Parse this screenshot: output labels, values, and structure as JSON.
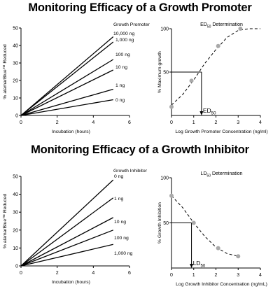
{
  "panels": [
    {
      "heading": "Monitoring Efficacy of a Growth Promoter"
    },
    {
      "heading": "Monitoring Efficacy of a Growth Inhibitor"
    }
  ],
  "chart_data": [
    {
      "type": "line",
      "title": "",
      "xlabel": "Incubation (hours)",
      "ylabel": "% alamarBlue™ Reduced",
      "legend_title": "Growth Promoter",
      "xlim": [
        0,
        6
      ],
      "ylim": [
        0,
        50
      ],
      "xticks": [
        0,
        2,
        4,
        6
      ],
      "yticks": [
        0,
        10,
        20,
        30,
        40,
        50
      ],
      "grid": false,
      "series": [
        {
          "name": "10,000 ng",
          "x": [
            0,
            5.1
          ],
          "y": [
            0,
            45
          ]
        },
        {
          "name": "1,000 ng",
          "x": [
            0,
            5.1
          ],
          "y": [
            0,
            42
          ]
        },
        {
          "name": "100 ng",
          "x": [
            0,
            5.1
          ],
          "y": [
            0,
            32
          ]
        },
        {
          "name": "10 ng",
          "x": [
            0,
            5.1
          ],
          "y": [
            0,
            26
          ]
        },
        {
          "name": "1 ng",
          "x": [
            0,
            5.1
          ],
          "y": [
            0,
            15
          ]
        },
        {
          "name": "0 ng",
          "x": [
            0,
            5.1
          ],
          "y": [
            0,
            9
          ]
        }
      ]
    },
    {
      "type": "scatter",
      "title": "ED50 Determination",
      "xlabel": "Log Growth Promoter Concentration  (ng/ml)",
      "ylabel": "% Maximum growth",
      "xlim": [
        0,
        4
      ],
      "ylim": [
        0,
        100
      ],
      "xticks": [
        0,
        1,
        2,
        3,
        4
      ],
      "yticks": [
        50,
        100
      ],
      "annotation": "ED50",
      "points": {
        "x": [
          0,
          0.9,
          2.1,
          3.1
        ],
        "y": [
          10,
          40,
          80,
          100
        ]
      },
      "fit_curve": {
        "x": [
          0,
          0.5,
          1,
          1.5,
          2,
          2.5,
          3,
          3.5,
          4
        ],
        "y": [
          12,
          24,
          41,
          60,
          76,
          90,
          98,
          100,
          100
        ]
      },
      "marker": {
        "x": 1.35,
        "y": 50
      }
    },
    {
      "type": "line",
      "title": "",
      "xlabel": "Incubation (hours)",
      "ylabel": "% alamarBlue™ Reduced",
      "legend_title": "Growth Inhibitor",
      "xlim": [
        0,
        6
      ],
      "ylim": [
        0,
        50
      ],
      "xticks": [
        0,
        2,
        4,
        6
      ],
      "yticks": [
        0,
        10,
        20,
        30,
        40,
        50
      ],
      "grid": false,
      "series": [
        {
          "name": "0 ng",
          "x": [
            0,
            5.1
          ],
          "y": [
            0,
            48
          ]
        },
        {
          "name": "1 ng",
          "x": [
            0,
            5.1
          ],
          "y": [
            0,
            38
          ]
        },
        {
          "name": "10 ng",
          "x": [
            0,
            5.1
          ],
          "y": [
            0,
            27
          ]
        },
        {
          "name": "100 ng",
          "x": [
            0,
            5.1
          ],
          "y": [
            0,
            20
          ]
        },
        {
          "name": "1,000 ng",
          "x": [
            0,
            5.1
          ],
          "y": [
            0,
            12
          ]
        }
      ]
    },
    {
      "type": "scatter",
      "title": "LD50 Determination",
      "xlabel": "Log Growth Inhibitor Concentration (ng/mL)",
      "ylabel": "% Growth Inhibition",
      "xlim": [
        0,
        4
      ],
      "ylim": [
        0,
        100
      ],
      "xticks": [
        0,
        1,
        2,
        3,
        4
      ],
      "yticks": [
        50,
        100
      ],
      "annotation": "LD50",
      "points": {
        "x": [
          0,
          1,
          2.1,
          3
        ],
        "y": [
          80,
          50,
          22,
          13
        ]
      },
      "fit_curve": {
        "x": [
          0,
          0.5,
          1,
          1.5,
          2,
          2.5,
          3
        ],
        "y": [
          80,
          67,
          50,
          35,
          23,
          16,
          13
        ]
      },
      "marker": {
        "x": 0.9,
        "y": 50
      }
    }
  ]
}
